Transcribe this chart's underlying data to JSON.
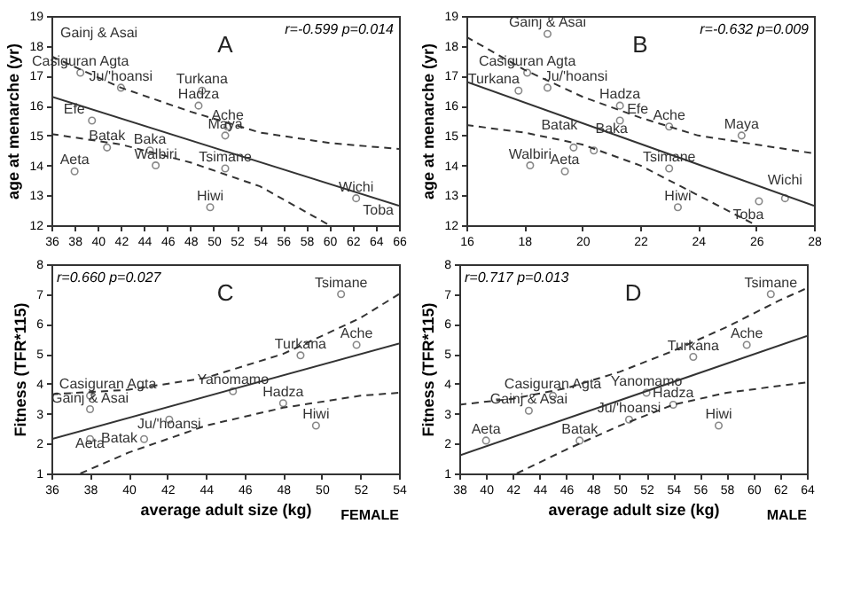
{
  "chart_data": [
    {
      "type": "scatter",
      "ylabel": "age at menarche (yr)",
      "xlim": [
        36,
        66
      ],
      "ylim": [
        12,
        19
      ],
      "xticks": [
        36,
        38,
        40,
        42,
        44,
        46,
        48,
        50,
        52,
        54,
        56,
        58,
        60,
        62,
        64,
        66
      ],
      "yticks": [
        12,
        13,
        14,
        15,
        16,
        17,
        18,
        19
      ],
      "grid": false,
      "annotations": [
        "A",
        "r=-0.599 p=0.014",
        "Gainj & Asai",
        "Toba"
      ],
      "series": [
        {
          "type": "scatter",
          "marker": "circle",
          "color": "#555555",
          "x": [
            38.5,
            42,
            49,
            48.7,
            39.5,
            51.2,
            51,
            40.8,
            44.5,
            45,
            51,
            38,
            49.7,
            62.3
          ],
          "values": [
            17.1,
            16.6,
            16.5,
            16.0,
            15.5,
            15.3,
            15.0,
            14.6,
            14.5,
            14.0,
            13.9,
            13.8,
            12.6,
            12.9
          ],
          "value_labels": [
            "Casiguran Agta",
            "Ju/'hoansi",
            "Turkana",
            "Hadza",
            "Efe",
            "Ache",
            "Maya",
            "Batak",
            "Baka",
            "Walbiri",
            "Tsimane",
            "Aeta",
            "Hiwi",
            "Wichi"
          ]
        },
        {
          "type": "line",
          "line_style": "solid",
          "color": "#333333",
          "x": [
            36,
            66
          ],
          "values": [
            16.3,
            12.65
          ]
        },
        {
          "type": "line",
          "line_style": "dashed",
          "color": "#333333",
          "x": [
            36,
            42,
            48,
            54,
            60,
            66
          ],
          "values": [
            17.65,
            16.6,
            15.8,
            15.1,
            14.75,
            14.55
          ]
        },
        {
          "type": "line",
          "line_style": "dashed",
          "color": "#333333",
          "x": [
            36,
            42,
            48,
            54,
            60
          ],
          "values": [
            15.05,
            14.7,
            14.1,
            13.3,
            12.0
          ]
        }
      ]
    },
    {
      "type": "scatter",
      "ylabel": "age at menarche (yr)",
      "xlim": [
        16,
        28
      ],
      "ylim": [
        12,
        19
      ],
      "xticks": [
        16,
        18,
        20,
        22,
        24,
        26,
        28
      ],
      "yticks": [
        12,
        13,
        14,
        15,
        16,
        17,
        18,
        19
      ],
      "grid": false,
      "annotations": [
        "B",
        "r=-0.632 p=0.009"
      ],
      "series": [
        {
          "type": "scatter",
          "marker": "circle",
          "color": "#555555",
          "x": [
            18.8,
            18.1,
            17.8,
            18.8,
            21.3,
            21.3,
            23,
            25.5,
            19.7,
            20.4,
            18.2,
            19.4,
            23,
            23.3,
            26.1,
            27
          ],
          "values": [
            18.4,
            17.1,
            16.5,
            16.6,
            16.0,
            15.5,
            15.3,
            15.0,
            14.6,
            14.5,
            14.0,
            13.8,
            13.9,
            12.6,
            12.8,
            12.9
          ],
          "value_labels": [
            "Gainj & Asai",
            "Casiguran Agta",
            "Turkana",
            "Ju/'hoansi",
            "Hadza",
            "Efe",
            "Ache",
            "Maya",
            "Batak",
            "Baka",
            "Walbiri",
            "Aeta",
            "Tsimane",
            "Hiwi",
            "Toba",
            "Wichi"
          ]
        },
        {
          "type": "line",
          "line_style": "solid",
          "color": "#333333",
          "x": [
            16,
            28
          ],
          "values": [
            16.8,
            12.65
          ]
        },
        {
          "type": "line",
          "line_style": "dashed",
          "color": "#333333",
          "x": [
            16,
            18,
            20,
            22,
            24,
            26,
            28
          ],
          "values": [
            18.3,
            17.2,
            16.3,
            15.6,
            15.0,
            14.7,
            14.4
          ]
        },
        {
          "type": "line",
          "line_style": "dashed",
          "color": "#333333",
          "x": [
            16,
            18,
            20,
            22,
            24,
            26
          ],
          "values": [
            15.35,
            15.1,
            14.7,
            14.0,
            13.0,
            12.0
          ]
        }
      ]
    },
    {
      "type": "scatter",
      "ylabel": "Fitness (TFR*115)",
      "xlabel": "average adult size (kg)",
      "xlim": [
        36,
        54
      ],
      "ylim": [
        1,
        8
      ],
      "xticks": [
        36,
        38,
        40,
        42,
        44,
        46,
        48,
        50,
        52,
        54
      ],
      "yticks": [
        1,
        2,
        3,
        4,
        5,
        6,
        7,
        8
      ],
      "grid": false,
      "annotations": [
        "C",
        "r=0.660 p=0.027",
        "FEMALE"
      ],
      "series": [
        {
          "type": "scatter",
          "marker": "circle",
          "color": "#555555",
          "x": [
            51,
            51.8,
            48.9,
            45.4,
            38,
            38,
            48,
            42.1,
            49.7,
            38,
            40.8
          ],
          "values": [
            7.0,
            5.3,
            4.95,
            3.75,
            3.6,
            3.15,
            3.35,
            2.8,
            2.6,
            2.15,
            2.15
          ],
          "value_labels": [
            "Tsimane",
            "Ache",
            "Turkana",
            "Yanomamo",
            "Casiguran Agta",
            "Gainj & Asai",
            "Hadza",
            "Ju/'hoansi",
            "Hiwi",
            "Aeta",
            "Batak"
          ]
        },
        {
          "type": "line",
          "line_style": "solid",
          "color": "#333333",
          "x": [
            36,
            54
          ],
          "values": [
            2.15,
            5.35
          ]
        },
        {
          "type": "line",
          "line_style": "dashed",
          "color": "#333333",
          "x": [
            36,
            40,
            44,
            48,
            52,
            54
          ],
          "values": [
            3.65,
            3.8,
            4.2,
            5.0,
            6.2,
            7.0
          ]
        },
        {
          "type": "line",
          "line_style": "dashed",
          "color": "#333333",
          "x": [
            37.5,
            40,
            44,
            48,
            52,
            54
          ],
          "values": [
            1.0,
            1.7,
            2.6,
            3.2,
            3.6,
            3.7
          ]
        }
      ]
    },
    {
      "type": "scatter",
      "ylabel": "Fitness (TFR*115)",
      "xlabel": "average adult size (kg)",
      "xlim": [
        38,
        64
      ],
      "ylim": [
        1,
        8
      ],
      "xticks": [
        38,
        40,
        42,
        44,
        46,
        48,
        50,
        52,
        54,
        56,
        58,
        60,
        62,
        64
      ],
      "yticks": [
        1,
        2,
        3,
        4,
        5,
        6,
        7,
        8
      ],
      "grid": false,
      "annotations": [
        "D",
        "r=0.717 p=0.013",
        "MALE"
      ],
      "series": [
        {
          "type": "scatter",
          "marker": "circle",
          "color": "#555555",
          "x": [
            61.3,
            59.5,
            55.5,
            52,
            45,
            43.2,
            54,
            50.7,
            57.4,
            40,
            47
          ],
          "values": [
            7.0,
            5.3,
            4.9,
            3.7,
            3.6,
            3.1,
            3.3,
            2.8,
            2.6,
            2.1,
            2.1
          ],
          "value_labels": [
            "Tsimane",
            "Ache",
            "Turkana",
            "Yanomamo",
            "Casiguran Agta",
            "Gainj & Asai",
            "Hadza",
            "Ju/'hoansi",
            "Hiwi",
            "Aeta",
            "Batak"
          ]
        },
        {
          "type": "line",
          "line_style": "solid",
          "color": "#333333",
          "x": [
            38,
            64
          ],
          "values": [
            1.6,
            5.6
          ]
        },
        {
          "type": "line",
          "line_style": "dashed",
          "color": "#333333",
          "x": [
            38,
            42,
            46,
            50,
            54,
            58,
            62,
            64
          ],
          "values": [
            3.3,
            3.5,
            3.85,
            4.4,
            5.1,
            5.9,
            6.8,
            7.2
          ]
        },
        {
          "type": "line",
          "line_style": "dashed",
          "color": "#333333",
          "x": [
            42.3,
            46,
            50,
            54,
            58,
            64
          ],
          "values": [
            1.0,
            1.8,
            2.6,
            3.3,
            3.7,
            4.05
          ]
        }
      ]
    }
  ]
}
